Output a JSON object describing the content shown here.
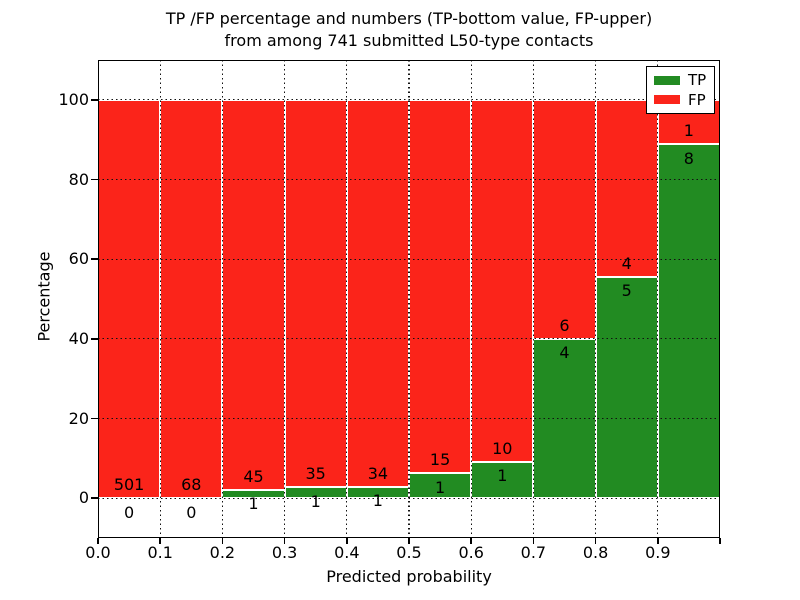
{
  "chart_data": {
    "type": "bar",
    "stacked": true,
    "title_line1": "TP /FP percentage and numbers (TP-bottom value, FP-upper)",
    "title_line2": "from among 741 submitted L50-type contacts",
    "xlabel": "Predicted probability",
    "ylabel": "Percentage",
    "total_contacts": 741,
    "xlim": [
      0.0,
      1.0
    ],
    "ylim": [
      -10,
      110
    ],
    "bin_width": 0.1,
    "x_ticks": [
      "0.0",
      "0.1",
      "0.2",
      "0.3",
      "0.4",
      "0.5",
      "0.6",
      "0.7",
      "0.8",
      "0.9"
    ],
    "y_ticks": [
      0,
      20,
      40,
      60,
      80,
      100
    ],
    "grid": "dotted",
    "bins": [
      {
        "x0": 0.0,
        "tp": 0,
        "fp": 501,
        "tp_percent": 0.0
      },
      {
        "x0": 0.1,
        "tp": 0,
        "fp": 68,
        "tp_percent": 0.0
      },
      {
        "x0": 0.2,
        "tp": 1,
        "fp": 45,
        "tp_percent": 2.2
      },
      {
        "x0": 0.3,
        "tp": 1,
        "fp": 35,
        "tp_percent": 2.8
      },
      {
        "x0": 0.4,
        "tp": 1,
        "fp": 34,
        "tp_percent": 2.9
      },
      {
        "x0": 0.5,
        "tp": 1,
        "fp": 15,
        "tp_percent": 6.2
      },
      {
        "x0": 0.6,
        "tp": 1,
        "fp": 10,
        "tp_percent": 9.1
      },
      {
        "x0": 0.7,
        "tp": 4,
        "fp": 6,
        "tp_percent": 40.0
      },
      {
        "x0": 0.8,
        "tp": 5,
        "fp": 4,
        "tp_percent": 55.6
      },
      {
        "x0": 0.9,
        "tp": 8,
        "fp": 1,
        "tp_percent": 88.9
      }
    ],
    "legend": {
      "position": "upper-right",
      "entries": [
        {
          "label": "TP",
          "series": "tp"
        },
        {
          "label": "FP",
          "series": "fp"
        }
      ]
    },
    "colors": {
      "tp": "#228b22",
      "fp": "#fb241a",
      "bar_edge": "#ffffff",
      "grid": "#111111",
      "frame": "#000000",
      "text": "#000000",
      "background": "#ffffff"
    }
  }
}
